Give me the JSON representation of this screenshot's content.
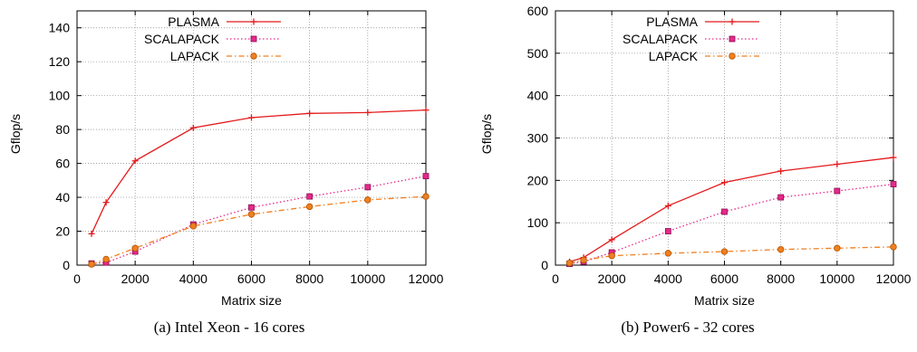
{
  "chart_data": [
    {
      "type": "line",
      "caption": "(a)  Intel Xeon - 16 cores",
      "xlabel": "Matrix size",
      "ylabel": "Gflop/s",
      "xlim": [
        0,
        12000
      ],
      "ylim": [
        0,
        150
      ],
      "xticks": [
        0,
        2000,
        4000,
        6000,
        8000,
        10000,
        12000
      ],
      "xtick_labels": [
        "0",
        "2000",
        "4000",
        "6000",
        "8000",
        "10000",
        "12000"
      ],
      "yticks": [
        0,
        20,
        40,
        60,
        80,
        100,
        120,
        140
      ],
      "grid": true,
      "legend_position": "top-left",
      "x": [
        500,
        1000,
        2000,
        4000,
        6000,
        8000,
        10000,
        12000
      ],
      "series": [
        {
          "name": "PLASMA",
          "color": "#e41a1c",
          "marker": "plus",
          "dash": "solid",
          "values": [
            18.5,
            37,
            61.5,
            81,
            87,
            89.5,
            90,
            91.5
          ]
        },
        {
          "name": "SCALAPACK",
          "color": "#e7298a",
          "marker": "square",
          "dash": "dotted",
          "values": [
            1,
            1.5,
            8,
            24,
            34,
            40.5,
            46,
            52.5
          ]
        },
        {
          "name": "LAPACK",
          "color": "#f07f1f",
          "marker": "circle",
          "dash": "dashdot",
          "values": [
            0.5,
            3.5,
            10,
            23,
            30,
            34.5,
            38.5,
            40.5
          ]
        }
      ]
    },
    {
      "type": "line",
      "caption": "(b) Power6 - 32 cores",
      "xlabel": "Matrix size",
      "ylabel": "Gflop/s",
      "xlim": [
        0,
        12000
      ],
      "ylim": [
        0,
        600
      ],
      "xticks": [
        0,
        2000,
        4000,
        6000,
        8000,
        10000,
        12000
      ],
      "xtick_labels": [
        "0",
        "2000",
        "4000",
        "6000",
        "8000",
        "10000",
        "12000"
      ],
      "yticks": [
        0,
        100,
        200,
        300,
        400,
        500,
        600
      ],
      "grid": true,
      "legend_position": "top-left",
      "x": [
        500,
        1000,
        2000,
        4000,
        6000,
        8000,
        10000,
        12000
      ],
      "series": [
        {
          "name": "PLASMA",
          "color": "#e41a1c",
          "marker": "plus",
          "dash": "solid",
          "values": [
            8,
            18,
            60,
            140,
            195,
            222,
            238,
            254
          ]
        },
        {
          "name": "SCALAPACK",
          "color": "#e7298a",
          "marker": "square",
          "dash": "dotted",
          "values": [
            3,
            8,
            30,
            80,
            126,
            160,
            175,
            191
          ]
        },
        {
          "name": "LAPACK",
          "color": "#f07f1f",
          "marker": "circle",
          "dash": "dashdot",
          "values": [
            5,
            12,
            22,
            28,
            32,
            37,
            40,
            43
          ]
        }
      ]
    }
  ]
}
